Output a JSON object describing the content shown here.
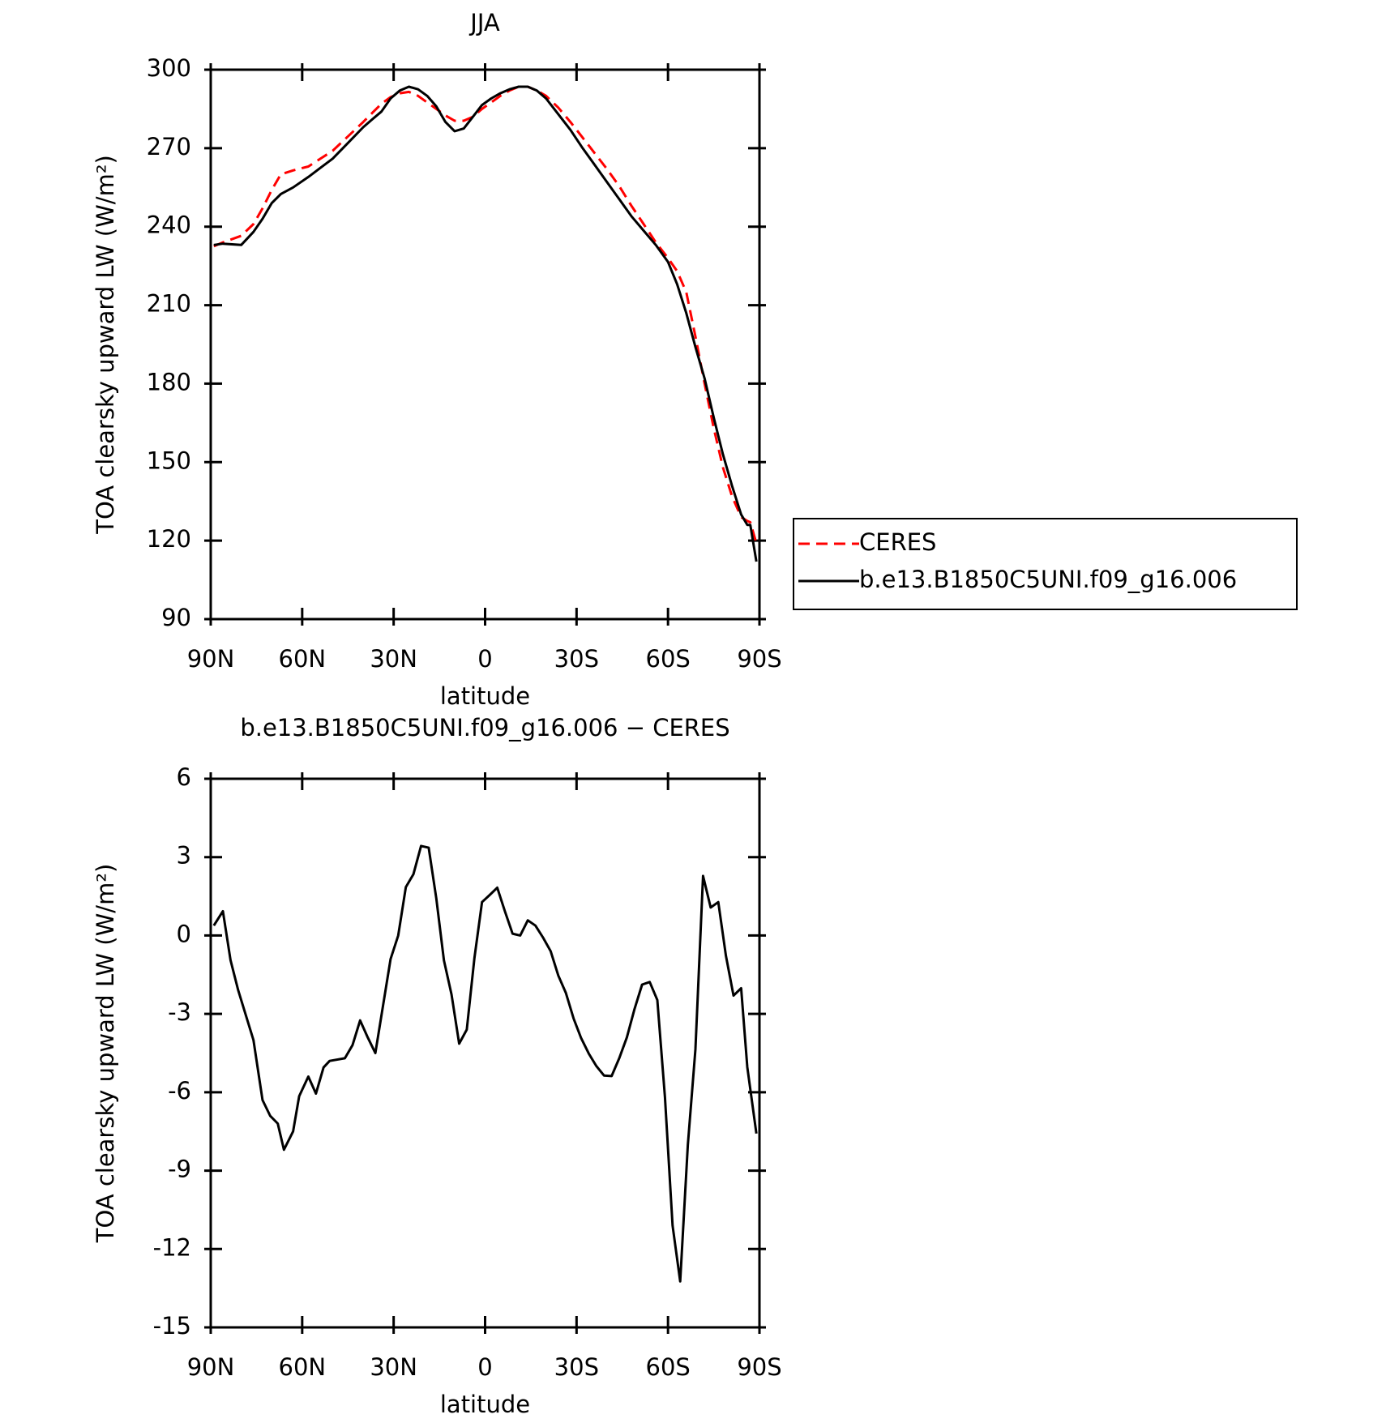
{
  "chart_data": [
    {
      "type": "line",
      "title": "JJA",
      "xlabel": "latitude",
      "ylabel": "TOA clearsky upward LW (W/m²)",
      "x": [
        89,
        86,
        80,
        76,
        73,
        70,
        67,
        63,
        58,
        54,
        50,
        45,
        40,
        37,
        34,
        31,
        28,
        25,
        22,
        19,
        16,
        13,
        10,
        7,
        4,
        1,
        -2,
        -5,
        -8,
        -11,
        -14,
        -17,
        -20,
        -24,
        -28,
        -32,
        -36,
        -40,
        -44,
        -48,
        -52,
        -56,
        -60,
        -63,
        -66,
        -69,
        -72,
        -75,
        -78,
        -81,
        -84,
        -86,
        -87,
        -89
      ],
      "series": [
        {
          "name": "CERES",
          "color": "#ff0000",
          "dash": true,
          "values": [
            232.5,
            234,
            236.5,
            241,
            247,
            254,
            260,
            261.5,
            263,
            266,
            269,
            274.5,
            280,
            283.5,
            287,
            289.5,
            291,
            291.5,
            290,
            287.5,
            285,
            282.5,
            280.5,
            280.5,
            282,
            285,
            287.5,
            290,
            292,
            293.5,
            293.5,
            292,
            290,
            285.5,
            280,
            274,
            268,
            262,
            255.5,
            248,
            241,
            234,
            228,
            223,
            215,
            198,
            180,
            163,
            148,
            137,
            129,
            127.5,
            127,
            119
          ]
        },
        {
          "name": "b.e13.B1850C5UNI.f09_g16.006",
          "color": "#000000",
          "dash": false,
          "values": [
            233,
            233.5,
            233,
            238,
            243,
            249,
            252.5,
            255,
            259,
            262.5,
            266,
            272,
            278,
            281,
            284,
            289,
            292,
            293.5,
            292.5,
            290,
            286,
            280,
            276.5,
            277.5,
            282,
            286.5,
            289,
            291,
            292.5,
            293.5,
            293.5,
            292,
            289,
            283,
            277,
            270,
            263.5,
            257,
            250.5,
            244,
            238.5,
            233,
            226.5,
            218,
            207,
            194,
            182,
            167,
            153,
            141,
            130,
            126,
            126,
            112
          ]
        }
      ],
      "xlim": [
        90,
        -90
      ],
      "xticks": [
        {
          "value": 90,
          "label": "90N"
        },
        {
          "value": 60,
          "label": "60N"
        },
        {
          "value": 30,
          "label": "30N"
        },
        0,
        {
          "value": -30,
          "label": "30S"
        },
        {
          "value": -60,
          "label": "60S"
        },
        {
          "value": -90,
          "label": "90S"
        }
      ],
      "ylim": [
        90,
        300
      ],
      "yticks": [
        90,
        120,
        150,
        180,
        210,
        240,
        270,
        300
      ],
      "legend": "right"
    },
    {
      "type": "line",
      "title": "b.e13.B1850C5UNI.f09_g16.006 − CERES",
      "xlabel": "latitude",
      "ylabel": "TOA clearsky upward LW (W/m²)",
      "x": [
        89,
        86,
        83.5,
        81,
        76,
        73,
        70.5,
        68,
        66,
        63,
        61,
        58,
        55.5,
        53,
        51,
        46,
        43.5,
        41,
        38.5,
        36,
        31,
        28.5,
        26,
        23.5,
        21,
        18.5,
        16,
        13.5,
        11,
        8.5,
        6,
        3.5,
        1,
        -1.5,
        -4,
        -6.5,
        -9,
        -11.5,
        -14,
        -16.5,
        -19,
        -21.5,
        -24,
        -26.5,
        -29,
        -31.5,
        -34,
        -36.5,
        -39,
        -41.5,
        -44,
        -46.5,
        -49,
        -51.5,
        -54,
        -56.5,
        -59,
        -61.5,
        -64,
        -66.5,
        -69,
        -71.5,
        -74,
        -76.5,
        -79,
        -81.5,
        -84,
        -86,
        -89
      ],
      "values": [
        0.38,
        0.93,
        -0.94,
        -2.1,
        -4.0,
        -6.3,
        -6.9,
        -7.2,
        -8.2,
        -7.5,
        -6.15,
        -5.4,
        -6.05,
        -5.05,
        -4.8,
        -4.7,
        -4.2,
        -3.25,
        -3.9,
        -4.5,
        -0.9,
        0.0,
        1.85,
        2.35,
        3.43,
        3.36,
        1.42,
        -0.95,
        -2.26,
        -4.14,
        -3.6,
        -0.87,
        1.28,
        1.55,
        1.83,
        0.93,
        0.07,
        0.0,
        0.58,
        0.38,
        -0.08,
        -0.6,
        -1.53,
        -2.2,
        -3.17,
        -3.93,
        -4.52,
        -5.0,
        -5.36,
        -5.38,
        -4.7,
        -3.9,
        -2.82,
        -1.88,
        -1.78,
        -2.47,
        -6.19,
        -11.1,
        -13.24,
        -8.03,
        -4.35,
        2.28,
        1.07,
        1.28,
        -0.77,
        -2.3,
        -2.02,
        -5.04,
        -7.58
      ],
      "color": "#000000",
      "xlim": [
        90,
        -90
      ],
      "xticks": [
        {
          "value": 90,
          "label": "90N"
        },
        {
          "value": 60,
          "label": "60N"
        },
        {
          "value": 30,
          "label": "30N"
        },
        0,
        {
          "value": -30,
          "label": "30S"
        },
        {
          "value": -60,
          "label": "60S"
        },
        {
          "value": -90,
          "label": "90S"
        }
      ],
      "ylim": [
        -15,
        6
      ],
      "yticks": [
        -15,
        -12,
        -9,
        -6,
        -3,
        0,
        3,
        6
      ]
    }
  ]
}
